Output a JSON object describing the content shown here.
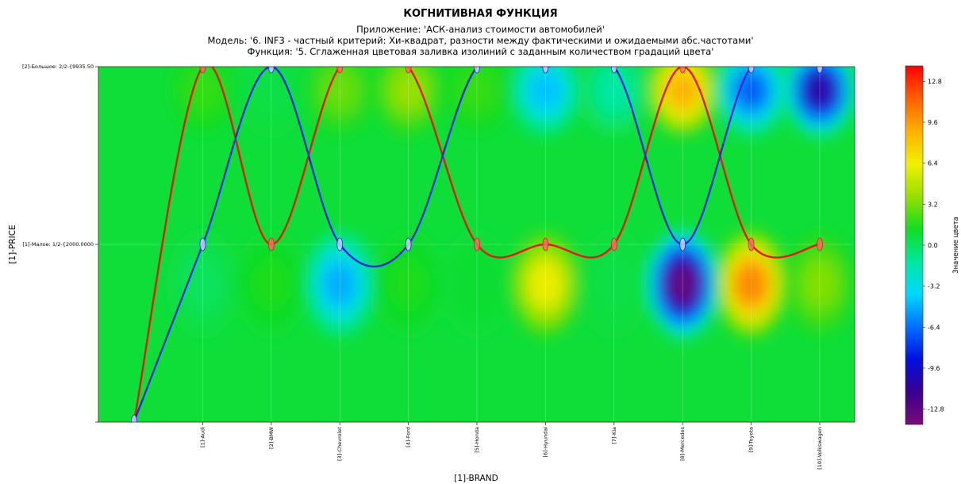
{
  "title": "КОГНИТИВНАЯ ФУНКЦИЯ",
  "subtitle_lines": [
    "Приложение: 'АСК-анализ стоимости автомобилей'",
    "Модель: '6. INF3 - частный критерий: Хи-квадрат, разности между фактическими и ожидаемыми абс.частотами'",
    "Функция: '5. Сглаженная цветовая заливка изолиний с заданным количеством градаций цвета'"
  ],
  "chart_data": {
    "type": "heatmap",
    "xlabel": "[1]-BRAND",
    "ylabel": "[1]-PRICE",
    "x_categories": [
      "[1]-Audi",
      "[2]-BMW",
      "[3]-Chevrolet",
      "[4]-Ford",
      "[5]-Honda",
      "[6]-Hyundai",
      "[7]-Kia",
      "[8]-Mercedes",
      "[9]-Toyota",
      "[10]-Volkswagen"
    ],
    "y_categories": [
      "[1]-Малое: 1/2-{2000.0000",
      "[2]-Большое: 2/2-{9935.50"
    ],
    "colorbar": {
      "label": "Значение цвета",
      "range": [
        -14.0,
        14.0
      ],
      "ticks": [
        12.8,
        9.6,
        6.4,
        3.2,
        0.0,
        -3.2,
        -6.4,
        -9.6,
        -12.8
      ],
      "colormap": [
        "#7a0a77",
        "#3a0090",
        "#0010e0",
        "#0070ff",
        "#00d8ff",
        "#00e8a0",
        "#12dc22",
        "#96e000",
        "#f0f000",
        "#ffb000",
        "#ff6000",
        "#ff0000"
      ]
    },
    "field_values": [
      {
        "brand": "[1]-Audi",
        "small": 0.0,
        "large": 2.0
      },
      {
        "brand": "[2]-BMW",
        "small": 1.5,
        "large": 0.5
      },
      {
        "brand": "[3]-Chevrolet",
        "small": -5.0,
        "large": 3.0
      },
      {
        "brand": "[4]-Ford",
        "small": 1.5,
        "large": 4.0
      },
      {
        "brand": "[5]-Honda",
        "small": 1.0,
        "large": 2.0
      },
      {
        "brand": "[6]-Hyundai",
        "small": 6.5,
        "large": -4.5
      },
      {
        "brand": "[7]-Kia",
        "small": 0.5,
        "large": -1.5
      },
      {
        "brand": "[8]-Mercedes",
        "small": -13.5,
        "large": 9.0
      },
      {
        "brand": "[9]-Toyota",
        "small": 10.5,
        "large": -7.0
      },
      {
        "brand": "[10]-Volkswagen",
        "small": 3.5,
        "large": -11.0
      }
    ],
    "series": [
      {
        "color": "#e81818",
        "positions": [
          "bottom",
          "[2]-Большое",
          "[1]-Малое",
          "[2]-Большое",
          "[2]-Большое",
          "[1]-Малое",
          "[1]-Малое",
          "[1]-Малое",
          "[2]-Большое",
          "[1]-Малое",
          "[1]-Малое"
        ]
      },
      {
        "color": "#1a28d8",
        "positions": [
          "bottom",
          "[1]-Малое",
          "[2]-Большое",
          "[1]-Малое",
          "[1]-Малое",
          "[2]-Большое",
          "[2]-Большое",
          "[2]-Большое",
          "[1]-Малое",
          "[2]-Большое",
          "[2]-Большое"
        ]
      }
    ],
    "grid": true
  }
}
